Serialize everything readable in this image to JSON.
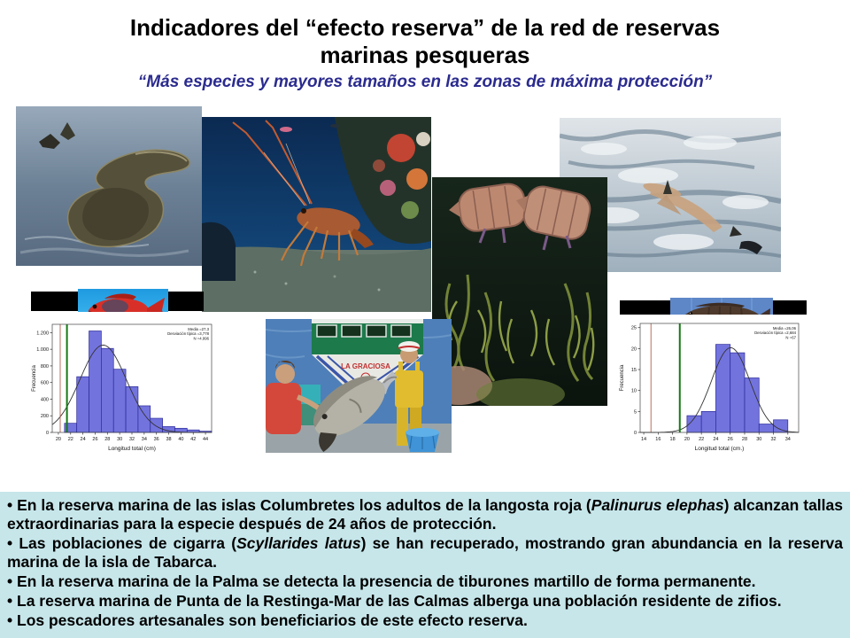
{
  "slide": {
    "title_line1": "Indicadores del “efecto reserva” de la red de reservas",
    "title_line2": "marinas pesqueras",
    "subtitle": "“Más especies y mayores tamaños en las zonas de máxima protección”",
    "title_color": "#000000",
    "subtitle_color": "#2b2b8f",
    "panel_bg": "#c6e6ea",
    "bullet_char": "•"
  },
  "figures": {
    "boat_label": "LA GRACIOSA",
    "items": [
      {
        "name": "columbretes-island-aerial-photo"
      },
      {
        "name": "red-spiny-lobster-photo"
      },
      {
        "name": "sea-surface-shark-photo"
      },
      {
        "name": "slipper-lobster-photo"
      },
      {
        "name": "fishing-boat-grouper-photo"
      },
      {
        "name": "red-fish-specimen-photo"
      },
      {
        "name": "grouper-specimen-photo"
      }
    ]
  },
  "bullets": [
    {
      "segments": [
        {
          "t": "En la reserva marina de las islas Columbretes los adultos de la langosta roja (",
          "i": false
        },
        {
          "t": "Palinurus elephas",
          "i": true
        },
        {
          "t": ") alcanzan tallas extraordinarias para la especie después de 24 años de protección.",
          "i": false
        }
      ]
    },
    {
      "segments": [
        {
          "t": "Las poblaciones de cigarra (",
          "i": false
        },
        {
          "t": "Scyllarides latus",
          "i": true
        },
        {
          "t": ") se han recuperado, mostrando gran abundancia en la reserva marina de la isla de Tabarca.",
          "i": false
        }
      ]
    },
    {
      "segments": [
        {
          "t": "En la reserva marina de la Palma se detecta la presencia de tiburones martillo de forma permanente.",
          "i": false
        }
      ]
    },
    {
      "segments": [
        {
          "t": "La reserva marina de Punta de la Restinga-Mar de las Calmas alberga una población residente de zifios.",
          "i": false
        }
      ]
    },
    {
      "segments": [
        {
          "t": "Los pescadores artesanales son beneficiarios de este efecto reserva.",
          "i": false
        }
      ]
    }
  ],
  "chart_data": [
    {
      "type": "bar",
      "subtype": "histogram-with-normal-curve",
      "title": "",
      "xlabel": "Longitud total (cm)",
      "ylabel": "Frecuencia",
      "xlim": [
        19,
        45
      ],
      "ylim": [
        0,
        1300
      ],
      "xticks": [
        20,
        22,
        24,
        26,
        28,
        30,
        32,
        34,
        36,
        38,
        40,
        42,
        44
      ],
      "yticks": [
        0,
        200,
        400,
        600,
        800,
        1000,
        1200
      ],
      "ytick_labels": [
        "0",
        "200",
        "400",
        "600",
        "800",
        "1.000",
        "1.200"
      ],
      "bin_start": 21,
      "bin_width": 2,
      "values": [
        110,
        670,
        1220,
        1010,
        760,
        550,
        320,
        170,
        70,
        50,
        30,
        15
      ],
      "red_line_x": 20.3,
      "green_line_x": 21.4,
      "curve": {
        "mean": 27.3,
        "sd": 3.778,
        "peak": 1050
      },
      "stats": [
        "Media =27,3",
        "Desviación típica =3,778",
        "N =4.996"
      ],
      "grid": false,
      "bar_fill": "#7373de",
      "bar_stroke": "#2a2a99",
      "red_line_color": "#b06050",
      "green_line_color": "#157a15",
      "curve_color": "#333333"
    },
    {
      "type": "bar",
      "subtype": "histogram-with-normal-curve",
      "title": "",
      "xlabel": "Longitud total (cm.)",
      "ylabel": "Frecuencia",
      "xlim": [
        13.5,
        35.5
      ],
      "ylim": [
        0,
        26
      ],
      "xticks": [
        14,
        16,
        18,
        20,
        22,
        24,
        26,
        28,
        30,
        32,
        34
      ],
      "yticks": [
        0,
        5,
        10,
        15,
        20,
        25
      ],
      "ytick_labels": [
        "0",
        "5",
        "10",
        "15",
        "20",
        "25"
      ],
      "bin_start": 20,
      "bin_width": 2,
      "values": [
        4,
        5,
        21,
        19,
        13,
        2,
        3
      ],
      "red_line_x": 15,
      "green_line_x": 19,
      "curve": {
        "mean": 26.06,
        "sd": 2.68,
        "peak": 20.2
      },
      "stats": [
        "Media =26,06",
        "Desviación típica =2,684",
        "N =67"
      ],
      "grid": false,
      "bar_fill": "#7373de",
      "bar_stroke": "#2a2a99",
      "red_line_color": "#b06050",
      "green_line_color": "#157a15",
      "curve_color": "#333333"
    }
  ]
}
